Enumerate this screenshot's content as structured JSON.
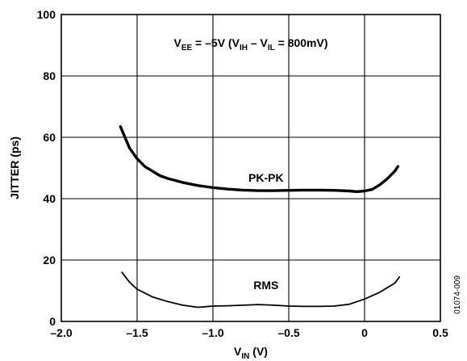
{
  "chart_data": {
    "type": "line",
    "title": "",
    "xlabel": "V",
    "xlabel_sub": "IN",
    "xlabel_unit": " (V)",
    "ylabel": "JITTER (ps)",
    "xlim": [
      -2.0,
      0.5
    ],
    "ylim": [
      0,
      100
    ],
    "x_ticks": [
      -2.0,
      -1.5,
      -1.0,
      -0.5,
      0,
      0.5
    ],
    "x_tick_labels": [
      "–2.0",
      "–1.5",
      "–1.0",
      "–0.5",
      "0",
      "0.5"
    ],
    "y_ticks": [
      0,
      20,
      40,
      60,
      80,
      100
    ],
    "y_tick_labels": [
      "0",
      "20",
      "40",
      "60",
      "80",
      "100"
    ],
    "grid": true,
    "annotation": {
      "parts": [
        {
          "t": "V",
          "sub": false
        },
        {
          "t": "EE",
          "sub": true
        },
        {
          "t": " = –5V (V",
          "sub": false
        },
        {
          "t": "IH",
          "sub": true
        },
        {
          "t": " – V",
          "sub": false
        },
        {
          "t": "IL",
          "sub": true
        },
        {
          "t": " = 800mV)",
          "sub": false
        }
      ]
    },
    "figure_id": "01074-009",
    "series": [
      {
        "name": "PK-PK",
        "line_width": "thick",
        "label_at": [
          -0.65,
          45.5
        ],
        "x": [
          -1.61,
          -1.55,
          -1.5,
          -1.45,
          -1.4,
          -1.35,
          -1.3,
          -1.2,
          -1.1,
          -1.0,
          -0.9,
          -0.8,
          -0.7,
          -0.6,
          -0.5,
          -0.4,
          -0.3,
          -0.2,
          -0.1,
          -0.05,
          0.0,
          0.05,
          0.1,
          0.15,
          0.2,
          0.22
        ],
        "y": [
          63.5,
          56.5,
          53.0,
          50.5,
          49.0,
          47.5,
          46.6,
          45.3,
          44.3,
          43.6,
          43.1,
          42.8,
          42.6,
          42.6,
          42.7,
          42.8,
          42.8,
          42.7,
          42.5,
          42.3,
          42.5,
          43.0,
          44.5,
          46.5,
          49.0,
          50.5
        ]
      },
      {
        "name": "RMS",
        "line_width": "thin",
        "label_at": [
          -0.65,
          10.5
        ],
        "x": [
          -1.6,
          -1.55,
          -1.5,
          -1.4,
          -1.3,
          -1.2,
          -1.1,
          -1.0,
          -0.9,
          -0.8,
          -0.7,
          -0.6,
          -0.5,
          -0.4,
          -0.3,
          -0.2,
          -0.1,
          0.0,
          0.1,
          0.2,
          0.23
        ],
        "y": [
          16.0,
          12.8,
          10.5,
          8.0,
          6.5,
          5.3,
          4.6,
          5.0,
          5.1,
          5.3,
          5.5,
          5.3,
          5.0,
          4.9,
          4.9,
          5.0,
          5.6,
          7.3,
          9.5,
          12.5,
          14.5
        ]
      }
    ]
  }
}
